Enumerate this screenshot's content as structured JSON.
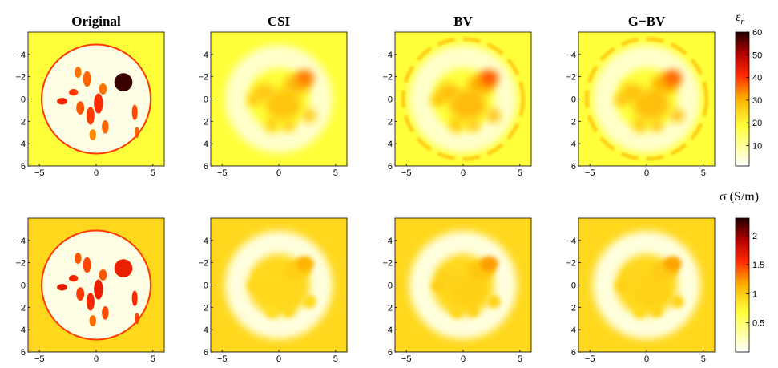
{
  "chart_data": {
    "type": "heatmap",
    "panel_titles": [
      "Original",
      "CSI",
      "BV",
      "G−BV"
    ],
    "rows": [
      {
        "quantity": "relative permittivity",
        "colorbar_label_base": "ε",
        "colorbar_label_sub": "r",
        "colorbar_range": [
          1,
          60
        ],
        "colorbar_ticks": [
          "10",
          "20",
          "30",
          "40",
          "50",
          "60"
        ],
        "colorbar_tick_values": [
          10,
          20,
          30,
          40,
          50,
          60
        ],
        "background_level": 0.3
      },
      {
        "quantity": "conductivity",
        "colorbar_label": "σ (S/m)",
        "colorbar_range": [
          0,
          2.3
        ],
        "colorbar_ticks": [
          "0.5",
          "1",
          "1.5",
          "2"
        ],
        "colorbar_tick_values": [
          0.5,
          1,
          1.5,
          2
        ],
        "background_level": 0.4
      }
    ],
    "x_ticks": [
      "−5",
      "0",
      "5"
    ],
    "x_tick_values": [
      -5,
      0,
      5
    ],
    "y_ticks": [
      "−4",
      "−2",
      "0",
      "2",
      "4",
      "6"
    ],
    "y_tick_values": [
      -4,
      -2,
      0,
      2,
      4,
      6
    ],
    "xlim": [
      -6,
      6
    ],
    "ylim": [
      -6,
      6
    ],
    "colormap": "hot (reversed: white → yellow → red → black)"
  }
}
